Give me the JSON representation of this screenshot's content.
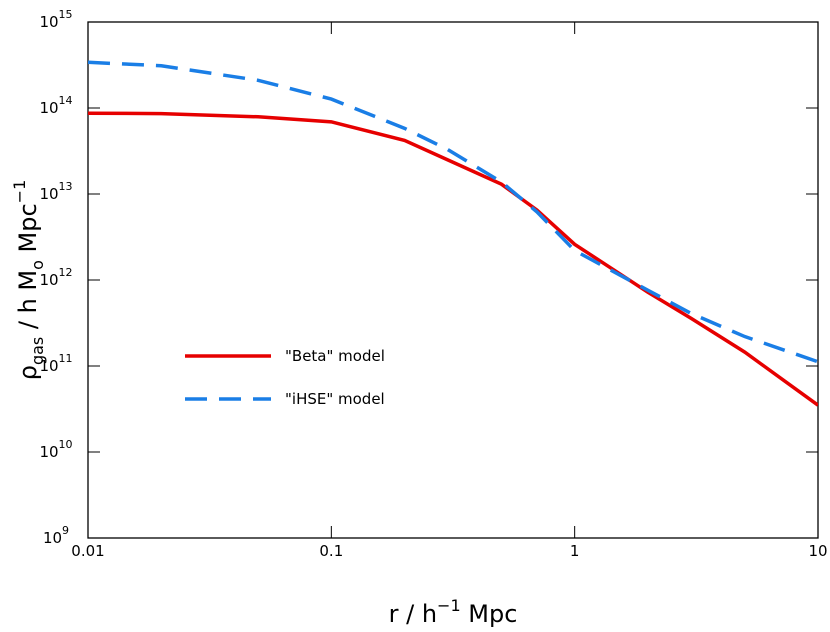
{
  "chart_data": {
    "type": "line",
    "xlabel": [
      {
        "text": "r / h"
      },
      {
        "text": "−1",
        "sup": true
      },
      {
        "text": " Mpc"
      }
    ],
    "ylabel": [
      {
        "text": "ρ"
      },
      {
        "text": "gas",
        "sub": true
      },
      {
        "text": " / h M"
      },
      {
        "text": "o",
        "sub": true
      },
      {
        "text": " Mpc"
      },
      {
        "text": "−1",
        "sup": true
      }
    ],
    "xscale": "log",
    "yscale": "log",
    "xlim": [
      0.01,
      10
    ],
    "ylim": [
      1000000000.0,
      1000000000000000.0
    ],
    "xticks": [
      0.01,
      0.1,
      1,
      10
    ],
    "yticks": [
      {
        "value": 1000000000.0,
        "label": "10",
        "superscript": "9"
      },
      {
        "value": 10000000000.0,
        "label": "10",
        "superscript": "10"
      },
      {
        "value": 100000000000.0,
        "label": "10",
        "superscript": "11"
      },
      {
        "value": 1000000000000.0,
        "label": "10",
        "superscript": "12"
      },
      {
        "value": 10000000000000.0,
        "label": "10",
        "superscript": "13"
      },
      {
        "value": 100000000000000.0,
        "label": "10",
        "superscript": "14"
      },
      {
        "value": 1000000000000000.0,
        "label": "10",
        "superscript": "15"
      }
    ],
    "legend": "left",
    "x": [
      0.01,
      0.02,
      0.05,
      0.1,
      0.2,
      0.3,
      0.5,
      0.7,
      1,
      2,
      3,
      5,
      10
    ],
    "series": [
      {
        "name": "\"Beta\" model",
        "color": "#e60000",
        "line_style": "solid",
        "values": [
          87000000000000.0,
          86000000000000.0,
          79000000000000.0,
          69000000000000.0,
          42000000000000.0,
          25000000000000.0,
          13000000000000.0,
          6500000000000.0,
          2600000000000.0,
          720000000000.0,
          360000000000.0,
          145000000000.0,
          35000000000.0
        ]
      },
      {
        "name": "\"iHSE\" model",
        "color": "#1a7ee6",
        "line_style": "dashed",
        "values": [
          340000000000000.0,
          310000000000000.0,
          210000000000000.0,
          127000000000000.0,
          58000000000000.0,
          33000000000000.0,
          13800000000000.0,
          6200000000000.0,
          2200000000000.0,
          760000000000.0,
          410000000000.0,
          220000000000.0,
          112000000000.0
        ]
      }
    ]
  }
}
